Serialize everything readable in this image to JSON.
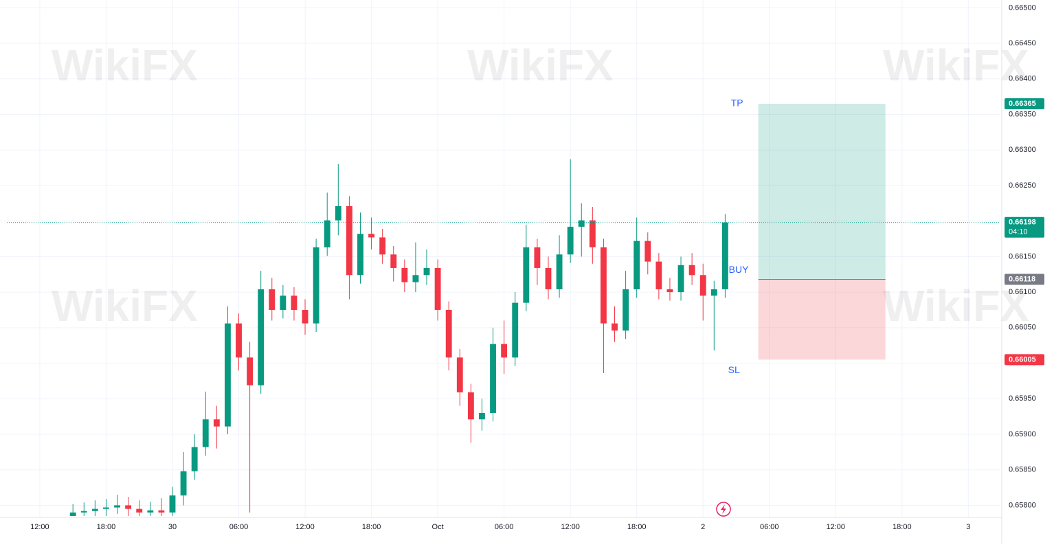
{
  "chart_data": {
    "type": "candlestick",
    "watermark": "WikiFX",
    "x": [
      3,
      4,
      5,
      6,
      7,
      8,
      9,
      10,
      11,
      12,
      13,
      14,
      15,
      16,
      17,
      18,
      19,
      20,
      21,
      22,
      23,
      24,
      25,
      26,
      27,
      28,
      29,
      30,
      31,
      32,
      33,
      34,
      35,
      36,
      37,
      38,
      39,
      40,
      41,
      42,
      43,
      44,
      45,
      46,
      47,
      48,
      49,
      50,
      51,
      52,
      53,
      54,
      55,
      56,
      57,
      58,
      59,
      60,
      61,
      62
    ],
    "open": [
      0.65785,
      0.6579,
      0.65792,
      0.65795,
      0.65797,
      0.658,
      0.65795,
      0.6579,
      0.65793,
      0.6579,
      0.65814,
      0.65848,
      0.65882,
      0.65921,
      0.65911,
      0.66056,
      0.66008,
      0.65969,
      0.66104,
      0.66075,
      0.66095,
      0.66075,
      0.66056,
      0.66163,
      0.66201,
      0.66221,
      0.66124,
      0.66182,
      0.66177,
      0.66153,
      0.66134,
      0.66114,
      0.66124,
      0.66134,
      0.66075,
      0.66008,
      0.65959,
      0.65921,
      0.6593,
      0.66027,
      0.66008,
      0.66085,
      0.66163,
      0.66134,
      0.66104,
      0.66153,
      0.66192,
      0.66201,
      0.66163,
      0.66056,
      0.66046,
      0.66104,
      0.66172,
      0.66143,
      0.66104,
      0.661,
      0.66138,
      0.66124,
      0.66095,
      0.66104
    ],
    "high": [
      0.65802,
      0.65804,
      0.65807,
      0.65809,
      0.65815,
      0.65812,
      0.65807,
      0.65805,
      0.6581,
      0.65826,
      0.65875,
      0.659,
      0.6596,
      0.6594,
      0.6608,
      0.6607,
      0.6603,
      0.6613,
      0.6612,
      0.6611,
      0.66107,
      0.6609,
      0.66175,
      0.6624,
      0.6628,
      0.66235,
      0.66212,
      0.66205,
      0.66189,
      0.66165,
      0.66146,
      0.6617,
      0.6616,
      0.66146,
      0.66087,
      0.6602,
      0.65971,
      0.6595,
      0.6605,
      0.6606,
      0.661,
      0.66195,
      0.66175,
      0.6615,
      0.6618,
      0.66287,
      0.66225,
      0.6622,
      0.66175,
      0.6608,
      0.6613,
      0.66205,
      0.66184,
      0.66155,
      0.6612,
      0.6615,
      0.66155,
      0.6614,
      0.66116,
      0.6621
    ],
    "low": [
      0.65785,
      0.65785,
      0.65785,
      0.65785,
      0.65788,
      0.65785,
      0.65785,
      0.65785,
      0.65785,
      0.65785,
      0.658,
      0.65836,
      0.6587,
      0.6588,
      0.659,
      0.6599,
      0.6579,
      0.65957,
      0.6606,
      0.66063,
      0.6606,
      0.6604,
      0.66044,
      0.66151,
      0.6618,
      0.6609,
      0.66112,
      0.6616,
      0.6614,
      0.66115,
      0.661,
      0.661,
      0.6611,
      0.6606,
      0.6599,
      0.6594,
      0.65888,
      0.65905,
      0.65918,
      0.65985,
      0.65996,
      0.66073,
      0.6611,
      0.6609,
      0.66092,
      0.66141,
      0.6615,
      0.6614,
      0.65986,
      0.6603,
      0.66034,
      0.66092,
      0.66125,
      0.6609,
      0.66088,
      0.66088,
      0.6611,
      0.6606,
      0.66018,
      0.66092
    ],
    "close": [
      0.6579,
      0.65792,
      0.65795,
      0.65797,
      0.658,
      0.65795,
      0.6579,
      0.65793,
      0.6579,
      0.65814,
      0.65848,
      0.65882,
      0.65921,
      0.65911,
      0.66056,
      0.66008,
      0.65969,
      0.66104,
      0.66075,
      0.66095,
      0.66075,
      0.66056,
      0.66163,
      0.66201,
      0.66221,
      0.66124,
      0.66182,
      0.66177,
      0.66153,
      0.66134,
      0.66114,
      0.66124,
      0.66134,
      0.66075,
      0.66008,
      0.65959,
      0.65921,
      0.6593,
      0.66027,
      0.66008,
      0.66085,
      0.66163,
      0.66134,
      0.66104,
      0.66153,
      0.66192,
      0.66201,
      0.66163,
      0.66056,
      0.66046,
      0.66104,
      0.66172,
      0.66143,
      0.66104,
      0.661,
      0.66138,
      0.66124,
      0.66095,
      0.66104,
      0.66198
    ],
    "up_color": "#089981",
    "down_color": "#f23645",
    "xlim": [
      -3.6,
      86.9
    ],
    "xticks": [
      {
        "value": 0,
        "label": "12:00"
      },
      {
        "value": 6,
        "label": "18:00"
      },
      {
        "value": 12,
        "label": "30"
      },
      {
        "value": 18,
        "label": "06:00"
      },
      {
        "value": 24,
        "label": "12:00"
      },
      {
        "value": 30,
        "label": "18:00"
      },
      {
        "value": 36,
        "label": "Oct"
      },
      {
        "value": 42,
        "label": "06:00"
      },
      {
        "value": 48,
        "label": "12:00"
      },
      {
        "value": 54,
        "label": "18:00"
      },
      {
        "value": 60,
        "label": "2"
      },
      {
        "value": 66,
        "label": "06:00"
      },
      {
        "value": 72,
        "label": "12:00"
      },
      {
        "value": 78,
        "label": "18:00"
      },
      {
        "value": 84,
        "label": "3"
      }
    ],
    "ylim": [
      0.65783,
      0.66511
    ],
    "yticks": [
      {
        "value": 0.665,
        "label": "0.66500"
      },
      {
        "value": 0.6645,
        "label": "0.66450"
      },
      {
        "value": 0.664,
        "label": "0.66400"
      },
      {
        "value": 0.6635,
        "label": "0.66350"
      },
      {
        "value": 0.663,
        "label": "0.66300"
      },
      {
        "value": 0.6625,
        "label": "0.66250"
      },
      {
        "value": 0.662,
        "label": "0.66200"
      },
      {
        "value": 0.6615,
        "label": "0.66150"
      },
      {
        "value": 0.661,
        "label": "0.66100"
      },
      {
        "value": 0.6605,
        "label": "0.66050"
      },
      {
        "value": 0.66,
        "label": "0.66000"
      },
      {
        "value": 0.6595,
        "label": "0.65950"
      },
      {
        "value": 0.659,
        "label": "0.65900"
      },
      {
        "value": 0.6585,
        "label": "0.65850"
      },
      {
        "value": 0.658,
        "label": "0.65800"
      }
    ],
    "grid": true,
    "last_price": 0.66198,
    "countdown": "04:10",
    "last_color": "#089981",
    "position": {
      "start": 65,
      "end": 76.5,
      "entry": 0.66118,
      "take_profit": 0.66365,
      "stop_loss": 0.66005,
      "tp_label": "TP",
      "entry_label": "BUY",
      "sl_label": "SL",
      "tp_color": "#089981",
      "entry_color": "#787b86",
      "sl_color": "#f23645"
    }
  }
}
